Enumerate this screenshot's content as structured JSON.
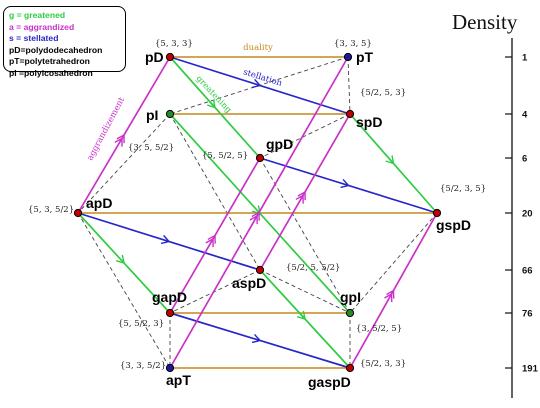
{
  "colors": {
    "greatened": "#2ecc40",
    "aggrandized": "#c832c8",
    "stellated": "#2727c9",
    "duality": "#c28a1c",
    "dashed": "#444444",
    "node_fill": "#c00000",
    "node_alt_fill": "#2a8a2a",
    "node_blue_fill": "#1a1aa0"
  },
  "legend": {
    "items": [
      {
        "text": "g = greatened",
        "color": "#2ecc40"
      },
      {
        "text": "a = aggrandized",
        "color": "#c832c8"
      },
      {
        "text": "s = stellated",
        "color": "#2727c9"
      },
      {
        "text": "pD=polydodecahedron",
        "color": "#000000"
      },
      {
        "text": "pT=polytetrahedron",
        "color": "#000000"
      },
      {
        "text": "pI =polyicosahedron",
        "color": "#000000"
      }
    ]
  },
  "density_axis": {
    "title": "Density",
    "ticks": [
      "1",
      "4",
      "6",
      "20",
      "66",
      "76",
      "191"
    ]
  },
  "nodes": [
    {
      "id": "pD",
      "label": "pD",
      "symbol": "{5, 3, 3}",
      "fill": "red"
    },
    {
      "id": "pT",
      "label": "pT",
      "symbol": "{3, 3, 5}",
      "fill": "blue"
    },
    {
      "id": "pI",
      "label": "pI",
      "symbol": "",
      "fill": "green"
    },
    {
      "id": "spD",
      "label": "spD",
      "symbol": "{5/2, 5, 3}",
      "fill": "red"
    },
    {
      "id": "gpD",
      "label": "gpD",
      "symbol": "{5, 5/2, 5}",
      "fill": "red"
    },
    {
      "id": "apD",
      "label": "apD",
      "symbol": "{5, 3, 5/2}",
      "fill": "red"
    },
    {
      "id": "gspD",
      "label": "gspD",
      "symbol": "{5/2, 3, 5}",
      "fill": "red"
    },
    {
      "id": "aspD",
      "label": "aspD",
      "symbol": "{5/2, 5, 5/2}",
      "fill": "red"
    },
    {
      "id": "gapD",
      "label": "gapD",
      "symbol": "{5, 5/2, 3}",
      "fill": "red"
    },
    {
      "id": "gpI",
      "label": "gpI",
      "symbol": "{3, 5/2, 5}",
      "fill": "green"
    },
    {
      "id": "apT",
      "label": "apT",
      "symbol": "{3, 3, 5/2}",
      "fill": "blue"
    },
    {
      "id": "gaspD",
      "label": "gaspD",
      "symbol": "{5/2, 3, 3}",
      "fill": "red"
    },
    {
      "id": "misc_symbol",
      "label": "",
      "symbol": "{3, 5, 5/2}",
      "fill": "none"
    }
  ],
  "edge_labels": {
    "duality": "duality",
    "stellation": "stellation",
    "greatening": "greatening",
    "aggrandizement": "aggrandizement"
  }
}
